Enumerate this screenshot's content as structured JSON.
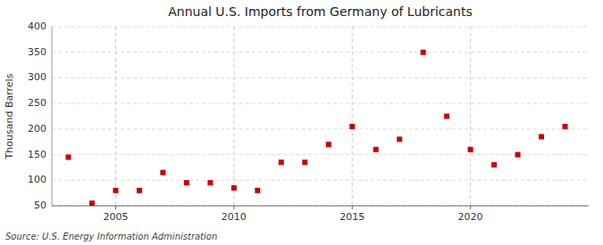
{
  "chart_data": {
    "type": "scatter",
    "title": "Annual U.S. Imports from Germany of Lubricants",
    "y_label": "Thousand Barrels",
    "source": "Source: U.S. Energy Information Administration",
    "x": [
      2003,
      2004,
      2005,
      2006,
      2007,
      2008,
      2009,
      2010,
      2011,
      2012,
      2013,
      2014,
      2015,
      2016,
      2017,
      2018,
      2019,
      2020,
      2021,
      2022,
      2023,
      2024
    ],
    "values": [
      145,
      55,
      80,
      80,
      115,
      95,
      95,
      85,
      80,
      135,
      135,
      170,
      205,
      160,
      180,
      350,
      225,
      160,
      130,
      150,
      185,
      205
    ],
    "color": "#cc0000",
    "marker": "square",
    "xlim": [
      2002.3,
      2025.0
    ],
    "ylim": [
      50,
      400
    ],
    "xticks": [
      2005,
      2010,
      2015,
      2020
    ],
    "yticks": [
      50,
      100,
      150,
      200,
      250,
      300,
      350,
      400
    ],
    "grid": true
  }
}
